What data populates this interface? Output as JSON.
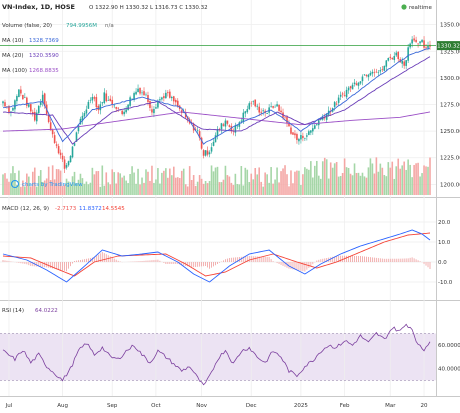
{
  "header": {
    "symbol": "VN-Index, 1D, HOSE",
    "ohlc_text": "O 1322.90 H 1330.32 L 1316.73 C 1330.32",
    "realtime": "realtime",
    "volume_label": "Volume (false, 20)",
    "volume_value": "794.9956M",
    "volume_na": "n/a",
    "ma10_label": "MA (10)",
    "ma10_value": "1328.7369",
    "ma20_label": "MA (20)",
    "ma20_value": "1320.3590",
    "ma100_label": "MA (100)",
    "ma100_value": "1268.8835",
    "last_price_tag": "1330.32",
    "watermark": "charts by TradingView"
  },
  "colors": {
    "up": "#26a69a",
    "down": "#ef5350",
    "ma10": "#3a68d8",
    "ma20": "#6a3db8",
    "ma100": "#9b4fc6",
    "macd": "#2962ff",
    "signal": "#f44336",
    "rsi": "#7b3f9e",
    "rsi_band": "#ece3f3",
    "hline": "#2e9e3a"
  },
  "macd_panel": {
    "label": "MACD (12, 26, 9)",
    "v1": "-2.7173",
    "v2": "11.8372",
    "v3": "14.5545"
  },
  "rsi_panel": {
    "label": "RSI (14)",
    "value": "64.0222"
  },
  "chart_data": {
    "type": "candlestick",
    "title": "VN-Index, 1D, HOSE",
    "price_axis": {
      "ticks": [
        1200,
        1225,
        1250,
        1275,
        1300,
        1325,
        1350
      ],
      "range": [
        1190,
        1360
      ]
    },
    "reference_line": 1330.32,
    "macd_axis": {
      "ticks": [
        -10,
        0,
        10,
        20
      ],
      "range": [
        -16,
        24
      ]
    },
    "rsi_axis": {
      "ticks": [
        40,
        60
      ],
      "range": [
        20,
        85
      ],
      "band": [
        30,
        70
      ]
    },
    "x_tick_labels": [
      "Jul",
      "Aug",
      "Sep",
      "Oct",
      "Nov",
      "Dec",
      "2025",
      "Feb",
      "Mar",
      "20"
    ],
    "x_tick_index": [
      3,
      30,
      55,
      77,
      100,
      125,
      150,
      172,
      195,
      212
    ],
    "close_anchors": [
      [
        0,
        1278
      ],
      [
        4,
        1268
      ],
      [
        8,
        1288
      ],
      [
        12,
        1276
      ],
      [
        16,
        1262
      ],
      [
        20,
        1285
      ],
      [
        24,
        1250
      ],
      [
        28,
        1232
      ],
      [
        31,
        1215
      ],
      [
        33,
        1222
      ],
      [
        36,
        1240
      ],
      [
        39,
        1260
      ],
      [
        42,
        1272
      ],
      [
        45,
        1285
      ],
      [
        48,
        1270
      ],
      [
        51,
        1284
      ],
      [
        53,
        1278
      ],
      [
        56,
        1276
      ],
      [
        60,
        1266
      ],
      [
        64,
        1280
      ],
      [
        68,
        1290
      ],
      [
        72,
        1283
      ],
      [
        75,
        1270
      ],
      [
        78,
        1278
      ],
      [
        82,
        1285
      ],
      [
        86,
        1278
      ],
      [
        89,
        1270
      ],
      [
        92,
        1262
      ],
      [
        95,
        1255
      ],
      [
        98,
        1250
      ],
      [
        101,
        1228
      ],
      [
        104,
        1232
      ],
      [
        108,
        1250
      ],
      [
        112,
        1260
      ],
      [
        116,
        1250
      ],
      [
        120,
        1262
      ],
      [
        125,
        1278
      ],
      [
        129,
        1270
      ],
      [
        133,
        1268
      ],
      [
        137,
        1275
      ],
      [
        141,
        1265
      ],
      [
        145,
        1250
      ],
      [
        148,
        1242
      ],
      [
        151,
        1245
      ],
      [
        154,
        1248
      ],
      [
        158,
        1258
      ],
      [
        162,
        1265
      ],
      [
        166,
        1272
      ],
      [
        170,
        1282
      ],
      [
        174,
        1290
      ],
      [
        178,
        1296
      ],
      [
        182,
        1303
      ],
      [
        186,
        1308
      ],
      [
        190,
        1305
      ],
      [
        194,
        1318
      ],
      [
        198,
        1322
      ],
      [
        202,
        1312
      ],
      [
        205,
        1335
      ],
      [
        207,
        1338
      ],
      [
        209,
        1330
      ],
      [
        211,
        1333
      ],
      [
        213,
        1326
      ],
      [
        215,
        1330
      ]
    ],
    "ma_anchors": {
      "ma10": [
        [
          0,
          1272
        ],
        [
          20,
          1278
        ],
        [
          30,
          1240
        ],
        [
          45,
          1270
        ],
        [
          70,
          1282
        ],
        [
          90,
          1272
        ],
        [
          101,
          1238
        ],
        [
          120,
          1258
        ],
        [
          135,
          1270
        ],
        [
          150,
          1250
        ],
        [
          170,
          1275
        ],
        [
          190,
          1303
        ],
        [
          205,
          1322
        ],
        [
          215,
          1328
        ]
      ],
      "ma20": [
        [
          0,
          1268
        ],
        [
          25,
          1265
        ],
        [
          35,
          1238
        ],
        [
          55,
          1268
        ],
        [
          78,
          1278
        ],
        [
          100,
          1252
        ],
        [
          120,
          1250
        ],
        [
          138,
          1268
        ],
        [
          152,
          1256
        ],
        [
          172,
          1270
        ],
        [
          195,
          1298
        ],
        [
          215,
          1320
        ]
      ],
      "ma100": [
        [
          0,
          1250
        ],
        [
          30,
          1252
        ],
        [
          60,
          1260
        ],
        [
          90,
          1268
        ],
        [
          120,
          1262
        ],
        [
          150,
          1256
        ],
        [
          175,
          1260
        ],
        [
          200,
          1263
        ],
        [
          215,
          1268
        ]
      ]
    },
    "macd_anchors": [
      [
        0,
        4
      ],
      [
        12,
        1
      ],
      [
        22,
        -4
      ],
      [
        32,
        -10
      ],
      [
        40,
        -3
      ],
      [
        50,
        6
      ],
      [
        60,
        3
      ],
      [
        70,
        4
      ],
      [
        78,
        5
      ],
      [
        88,
        0
      ],
      [
        96,
        -6
      ],
      [
        104,
        -10
      ],
      [
        114,
        -2
      ],
      [
        124,
        4
      ],
      [
        134,
        6
      ],
      [
        144,
        -2
      ],
      [
        152,
        -6
      ],
      [
        160,
        -1
      ],
      [
        170,
        4
      ],
      [
        180,
        8
      ],
      [
        190,
        11
      ],
      [
        200,
        14
      ],
      [
        206,
        16
      ],
      [
        211,
        14
      ],
      [
        215,
        11
      ]
    ],
    "signal_anchors": [
      [
        0,
        3
      ],
      [
        14,
        2
      ],
      [
        26,
        -3
      ],
      [
        36,
        -7
      ],
      [
        46,
        0
      ],
      [
        58,
        3
      ],
      [
        70,
        3.5
      ],
      [
        82,
        4
      ],
      [
        92,
        -1
      ],
      [
        102,
        -7
      ],
      [
        112,
        -5
      ],
      [
        124,
        1
      ],
      [
        136,
        4
      ],
      [
        148,
        0
      ],
      [
        158,
        -3
      ],
      [
        168,
        0
      ],
      [
        180,
        5
      ],
      [
        192,
        10
      ],
      [
        204,
        13.5
      ],
      [
        212,
        14.2
      ],
      [
        215,
        14.5
      ]
    ],
    "rsi_anchors": [
      [
        0,
        55
      ],
      [
        6,
        48
      ],
      [
        10,
        56
      ],
      [
        14,
        45
      ],
      [
        18,
        52
      ],
      [
        22,
        42
      ],
      [
        26,
        36
      ],
      [
        30,
        30
      ],
      [
        34,
        40
      ],
      [
        38,
        55
      ],
      [
        42,
        62
      ],
      [
        46,
        52
      ],
      [
        50,
        58
      ],
      [
        54,
        50
      ],
      [
        58,
        48
      ],
      [
        62,
        55
      ],
      [
        66,
        60
      ],
      [
        70,
        52
      ],
      [
        74,
        45
      ],
      [
        78,
        55
      ],
      [
        82,
        50
      ],
      [
        86,
        44
      ],
      [
        90,
        38
      ],
      [
        94,
        42
      ],
      [
        98,
        32
      ],
      [
        101,
        25
      ],
      [
        104,
        33
      ],
      [
        108,
        48
      ],
      [
        112,
        56
      ],
      [
        116,
        44
      ],
      [
        120,
        55
      ],
      [
        124,
        58
      ],
      [
        128,
        50
      ],
      [
        132,
        45
      ],
      [
        136,
        55
      ],
      [
        140,
        50
      ],
      [
        144,
        38
      ],
      [
        148,
        34
      ],
      [
        152,
        42
      ],
      [
        156,
        47
      ],
      [
        160,
        55
      ],
      [
        164,
        60
      ],
      [
        168,
        58
      ],
      [
        172,
        64
      ],
      [
        176,
        60
      ],
      [
        180,
        68
      ],
      [
        184,
        62
      ],
      [
        188,
        70
      ],
      [
        192,
        65
      ],
      [
        196,
        75
      ],
      [
        200,
        72
      ],
      [
        203,
        78
      ],
      [
        206,
        74
      ],
      [
        209,
        60
      ],
      [
        212,
        56
      ],
      [
        215,
        64
      ]
    ]
  }
}
